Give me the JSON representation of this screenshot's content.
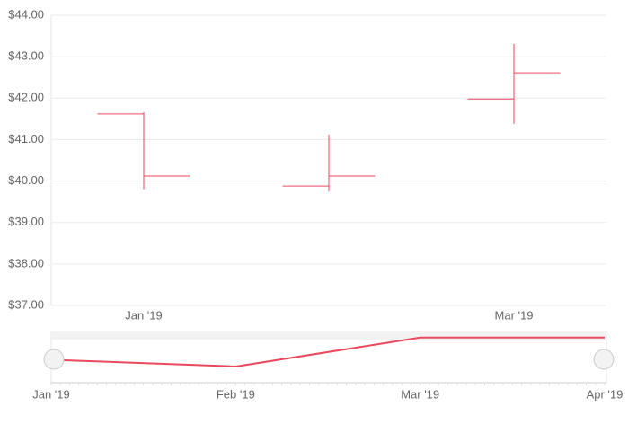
{
  "chart_data": [
    {
      "type": "ohlc",
      "categories": [
        "Jan '19",
        null,
        "Mar '19"
      ],
      "series": [
        {
          "color": "#e9495c",
          "open": [
            41.62,
            39.88,
            41.98
          ],
          "high": [
            41.66,
            41.12,
            43.31
          ],
          "low": [
            39.8,
            39.75,
            41.38
          ],
          "close": [
            40.12,
            40.12,
            42.61
          ]
        }
      ],
      "ylim": [
        37,
        44
      ],
      "yticks": [
        {
          "value": 37,
          "label": "$37.00"
        },
        {
          "value": 38,
          "label": "$38.00"
        },
        {
          "value": 39,
          "label": "$39.00"
        },
        {
          "value": 40,
          "label": "$40.00"
        },
        {
          "value": 41,
          "label": "$41.00"
        },
        {
          "value": 42,
          "label": "$42.00"
        },
        {
          "value": 43,
          "label": "$43.00"
        },
        {
          "value": 44,
          "label": "$44.00"
        }
      ],
      "grid": true
    },
    {
      "type": "line",
      "x": [
        "Jan '19",
        "Feb '19",
        "Mar '19",
        "Apr '19"
      ],
      "values": [
        41.01,
        40.55,
        42.53,
        42.53
      ],
      "color": "#e9495c",
      "ylim": [
        39.5,
        42.7
      ]
    }
  ]
}
